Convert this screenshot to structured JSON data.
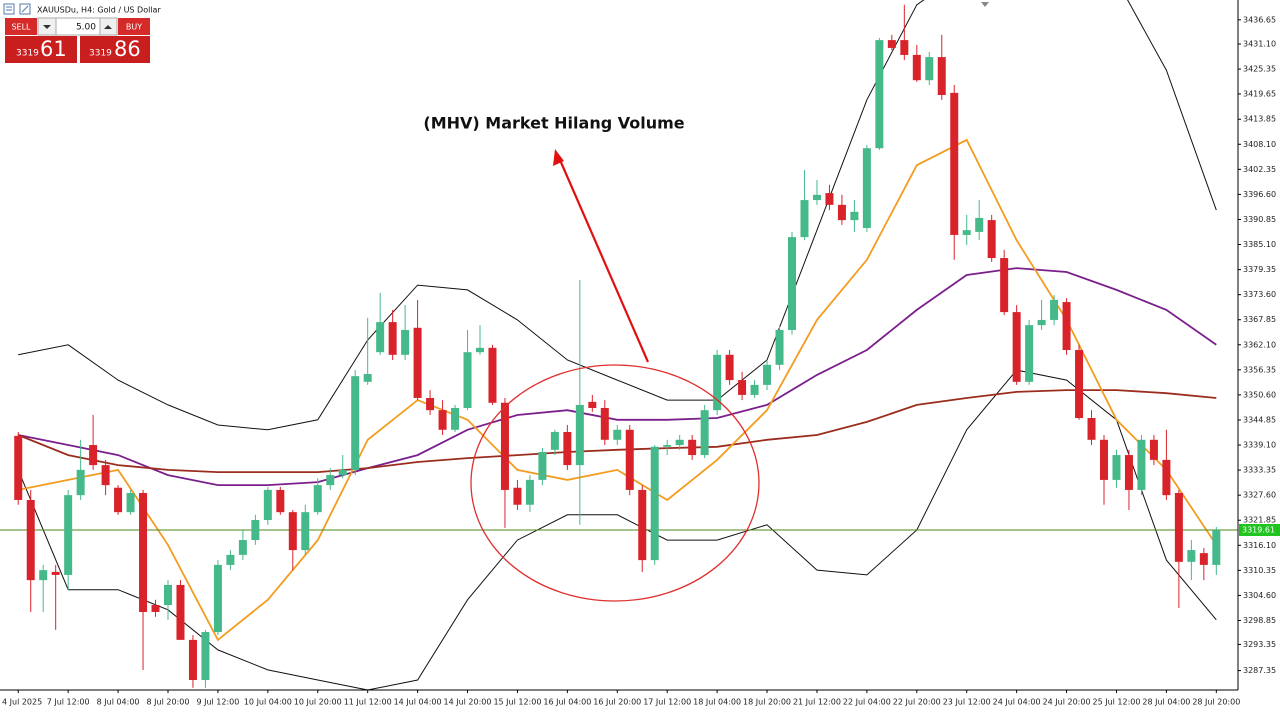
{
  "header": {
    "title": "XAUUSDu, H4:  Gold / US Dollar"
  },
  "trade_panel": {
    "sell_label": "SELL",
    "lot": "5.00",
    "buy_label": "BUY",
    "sell_price_int": "3319",
    "sell_price_frac": "61",
    "buy_price_int": "3319",
    "buy_price_frac": "86"
  },
  "chart_data": {
    "type": "candlestick",
    "annotation": "(MHV) Market Hilang Volume",
    "categories": [
      "4 Jul 2025",
      null,
      null,
      null,
      "7 Jul 12:00",
      null,
      null,
      null,
      "8 Jul 04:00",
      null,
      null,
      null,
      "8 Jul 20:00",
      null,
      null,
      null,
      "9 Jul 12:00",
      null,
      null,
      null,
      "10 Jul 04:00",
      null,
      null,
      null,
      "10 Jul 20:00",
      null,
      null,
      null,
      "11 Jul 12:00",
      null,
      null,
      null,
      "14 Jul 04:00",
      null,
      null,
      null,
      "14 Jul 20:00",
      null,
      null,
      null,
      "15 Jul 12:00",
      null,
      null,
      null,
      "16 Jul 04:00",
      null,
      null,
      null,
      "16 Jul 20:00",
      null,
      null,
      null,
      "17 Jul 12:00",
      null,
      null,
      null,
      "18 Jul 04:00",
      null,
      null,
      null,
      "18 Jul 20:00",
      null,
      null,
      null,
      "21 Jul 12:00",
      null,
      null,
      null,
      "22 Jul 04:00",
      null,
      null,
      null,
      "22 Jul 20:00",
      null,
      null,
      null,
      "23 Jul 12:00",
      null,
      null,
      null,
      "24 Jul 04:00",
      null,
      null,
      null,
      "24 Jul 20:00",
      null,
      null,
      null,
      "25 Jul 12:00",
      null,
      null,
      null,
      "28 Jul 04:00",
      null,
      null,
      null,
      "28 Jul 20:00"
    ],
    "open": [
      3341.2,
      3326.5,
      3308.1,
      3310.0,
      3309.3,
      3327.6,
      3339.1,
      3334.5,
      3329.3,
      3323.7,
      3328.1,
      3302.4,
      3302.4,
      3307.0,
      3294.4,
      3285.2,
      3296.2,
      3311.6,
      3313.9,
      3317.3,
      3321.9,
      3328.8,
      3323.7,
      3315.0,
      3323.7,
      3329.9,
      3332.2,
      3333.4,
      3353.6,
      3360.4,
      3367.3,
      3359.8,
      3366.0,
      3349.9,
      3347.1,
      3342.6,
      3347.6,
      3360.4,
      3361.4,
      3348.8,
      3329.3,
      3325.4,
      3331.1,
      3338.0,
      3342.1,
      3334.5,
      3349.0,
      3347.6,
      3340.3,
      3342.6,
      3328.8,
      3312.7,
      3338.7,
      3339.1,
      3340.3,
      3336.8,
      3347.1,
      3359.8,
      3354.0,
      3350.6,
      3352.9,
      3357.5,
      3365.5,
      3386.8,
      3395.3,
      3396.9,
      3394.2,
      3390.7,
      3388.9,
      3407.2,
      3432.0,
      3432.0,
      3428.6,
      3422.8,
      3428.1,
      3419.9,
      3387.3,
      3388.0,
      3390.7,
      3382.0,
      3369.6,
      3353.6,
      3366.6,
      3367.8,
      3371.9,
      3360.9,
      3345.3,
      3340.3,
      3331.1,
      3336.8,
      3328.8,
      3340.3,
      3335.7,
      3328.1,
      3312.3,
      3314.3,
      3311.6
    ],
    "high": [
      3342.1,
      3328.8,
      3311.6,
      3311.6,
      3328.8,
      3340.3,
      3346.0,
      3335.7,
      3329.9,
      3328.8,
      3328.8,
      3303.6,
      3308.1,
      3308.1,
      3295.5,
      3296.7,
      3312.7,
      3315.0,
      3319.6,
      3323.1,
      3329.5,
      3329.5,
      3324.2,
      3325.4,
      3331.5,
      3333.8,
      3336.8,
      3356.3,
      3368.3,
      3374.0,
      3370.1,
      3371.2,
      3372.4,
      3351.7,
      3349.4,
      3348.3,
      3365.5,
      3366.6,
      3362.1,
      3349.9,
      3331.1,
      3332.2,
      3338.4,
      3342.6,
      3343.7,
      3377.0,
      3350.6,
      3349.4,
      3343.7,
      3343.7,
      3329.9,
      3339.1,
      3340.3,
      3341.4,
      3341.4,
      3348.3,
      3360.9,
      3360.9,
      3355.9,
      3354.0,
      3358.6,
      3366.6,
      3388.0,
      3402.2,
      3399.9,
      3398.8,
      3396.5,
      3395.3,
      3407.9,
      3432.5,
      3433.2,
      3440.1,
      3430.9,
      3429.3,
      3433.2,
      3421.7,
      3391.9,
      3395.3,
      3391.9,
      3383.9,
      3371.2,
      3367.8,
      3372.4,
      3373.5,
      3372.8,
      3362.1,
      3347.1,
      3341.4,
      3338.0,
      3338.0,
      3341.4,
      3341.4,
      3342.6,
      3328.8,
      3317.3,
      3315.5,
      3320.3
    ],
    "low": [
      3325.4,
      3300.8,
      3300.8,
      3296.7,
      3305.9,
      3326.5,
      3333.4,
      3327.6,
      3323.1,
      3323.1,
      3287.5,
      3299.7,
      3299.0,
      3294.4,
      3283.4,
      3283.4,
      3295.5,
      3310.4,
      3312.7,
      3316.2,
      3320.8,
      3323.1,
      3310.4,
      3313.9,
      3323.1,
      3328.8,
      3331.5,
      3332.2,
      3352.9,
      3359.8,
      3358.6,
      3358.6,
      3349.4,
      3346.0,
      3341.4,
      3342.1,
      3347.1,
      3359.8,
      3348.3,
      3320.1,
      3324.2,
      3323.7,
      3329.9,
      3336.8,
      3333.4,
      3320.8,
      3346.7,
      3339.1,
      3339.1,
      3327.6,
      3310.0,
      3311.6,
      3336.8,
      3338.0,
      3335.7,
      3336.1,
      3346.0,
      3352.9,
      3349.4,
      3349.9,
      3351.7,
      3356.3,
      3364.4,
      3386.1,
      3394.2,
      3393.0,
      3389.6,
      3388.0,
      3388.0,
      3406.8,
      3429.7,
      3427.4,
      3422.4,
      3421.7,
      3418.3,
      3381.6,
      3385.0,
      3386.1,
      3381.1,
      3368.9,
      3352.9,
      3352.9,
      3365.5,
      3366.6,
      3359.8,
      3344.9,
      3339.1,
      3325.4,
      3329.3,
      3324.2,
      3327.6,
      3334.5,
      3326.5,
      3301.7,
      3308.1,
      3308.1,
      3309.3
    ],
    "close": [
      3326.5,
      3308.1,
      3310.4,
      3309.3,
      3327.6,
      3333.4,
      3334.5,
      3329.9,
      3323.7,
      3328.1,
      3300.8,
      3300.8,
      3307.0,
      3294.4,
      3285.2,
      3296.2,
      3311.6,
      3313.9,
      3317.3,
      3321.9,
      3328.8,
      3323.7,
      3315.0,
      3323.7,
      3329.9,
      3332.2,
      3333.4,
      3354.9,
      3355.4,
      3367.3,
      3359.8,
      3365.5,
      3349.9,
      3347.1,
      3342.6,
      3347.6,
      3360.4,
      3361.4,
      3348.8,
      3328.8,
      3325.4,
      3331.1,
      3337.5,
      3342.1,
      3334.5,
      3348.3,
      3347.6,
      3340.3,
      3342.6,
      3328.8,
      3312.7,
      3338.7,
      3339.1,
      3340.3,
      3336.8,
      3347.1,
      3359.8,
      3354.0,
      3350.6,
      3352.9,
      3357.5,
      3365.5,
      3386.8,
      3395.3,
      3396.5,
      3394.2,
      3390.7,
      3392.6,
      3407.2,
      3432.0,
      3430.2,
      3428.6,
      3422.8,
      3428.1,
      3419.4,
      3387.3,
      3388.4,
      3391.2,
      3382.0,
      3369.6,
      3353.6,
      3366.6,
      3367.8,
      3372.4,
      3360.9,
      3345.3,
      3340.3,
      3331.1,
      3336.8,
      3328.8,
      3340.3,
      3335.7,
      3327.6,
      3312.3,
      3315.0,
      3311.6,
      3319.6
    ],
    "up_color": "#45b98a",
    "down_color": "#d9232b",
    "indicators": [
      {
        "color": "#111111",
        "x": [
          0,
          4,
          8,
          12,
          16,
          20,
          24,
          28,
          32,
          36,
          40,
          44,
          48,
          52,
          56,
          60,
          64,
          68,
          72,
          76,
          80,
          84,
          88,
          92,
          96
        ],
        "values": [
          3359.8,
          3362.1,
          3354.0,
          3348.3,
          3343.7,
          3342.6,
          3344.9,
          3363.2,
          3375.8,
          3374.7,
          3367.8,
          3358.6,
          3354.0,
          3349.4,
          3349.4,
          3358.6,
          3388.4,
          3418.3,
          3440.1,
          3448.1,
          3455.0,
          3455.0,
          3445.8,
          3425.1,
          3393.0
        ]
      },
      {
        "color": "#111111",
        "x": [
          0,
          4,
          8,
          12,
          16,
          20,
          24,
          28,
          32,
          36,
          40,
          44,
          48,
          52,
          56,
          60,
          64,
          68,
          72,
          76,
          80,
          84,
          88,
          92,
          96
        ],
        "values": [
          3333.4,
          3305.9,
          3305.9,
          3301.3,
          3292.1,
          3287.5,
          3285.2,
          3282.9,
          3285.2,
          3303.6,
          3317.3,
          3323.1,
          3323.1,
          3317.3,
          3317.3,
          3320.8,
          3310.4,
          3309.3,
          3319.6,
          3342.6,
          3356.3,
          3354.0,
          3344.9,
          3312.7,
          3299.0
        ]
      },
      {
        "color": "#7b1f8c",
        "x": [
          0,
          4,
          8,
          12,
          16,
          20,
          24,
          28,
          32,
          36,
          40,
          44,
          48,
          52,
          56,
          60,
          64,
          68,
          72,
          76,
          80,
          84,
          88,
          92,
          96
        ],
        "values": [
          3341.4,
          3339.1,
          3336.8,
          3332.2,
          3329.9,
          3329.9,
          3330.6,
          3333.8,
          3336.8,
          3342.6,
          3346.0,
          3347.1,
          3344.9,
          3344.9,
          3345.3,
          3348.3,
          3355.2,
          3360.9,
          3370.1,
          3378.1,
          3379.7,
          3378.8,
          3374.7,
          3370.1,
          3362.1
        ]
      },
      {
        "color": "#9b2d1f",
        "x": [
          0,
          4,
          8,
          12,
          16,
          20,
          24,
          28,
          32,
          36,
          40,
          44,
          48,
          52,
          56,
          60,
          64,
          68,
          72,
          76,
          80,
          84,
          88,
          92,
          96
        ],
        "values": [
          3341.4,
          3336.8,
          3334.5,
          3333.4,
          3332.9,
          3332.9,
          3332.9,
          3333.8,
          3335.2,
          3336.1,
          3336.8,
          3337.5,
          3338.0,
          3338.4,
          3338.7,
          3340.3,
          3341.4,
          3344.4,
          3348.3,
          3349.9,
          3351.3,
          3351.7,
          3351.7,
          3351.0,
          3349.9
        ]
      },
      {
        "color": "#f39c1f",
        "x": [
          0,
          4,
          8,
          12,
          16,
          20,
          24,
          28,
          32,
          36,
          40,
          44,
          48,
          52,
          56,
          60,
          64,
          68,
          72,
          76,
          80,
          84,
          88,
          92,
          96
        ],
        "values": [
          3328.8,
          3331.1,
          3333.4,
          3316.2,
          3294.4,
          3303.6,
          3317.3,
          3340.3,
          3349.4,
          3344.9,
          3333.4,
          3331.1,
          3333.4,
          3326.5,
          3335.7,
          3347.1,
          3367.8,
          3381.6,
          3403.3,
          3409.1,
          3386.1,
          3367.8,
          3344.9,
          3333.4,
          3316.2
        ]
      }
    ],
    "current_price": {
      "value": 3319.61,
      "label": "3319.61"
    },
    "ylim": [
      3282.9,
      3441.2
    ],
    "yticks": [
      3436.65,
      {
        "value": 3431.1,
        "label": "3431.10"
      },
      3425.35,
      3419.65,
      3413.85,
      {
        "value": 3408.1,
        "label": "3408.10"
      },
      3402.35,
      {
        "value": 3396.6,
        "label": "3396.60"
      },
      3390.85,
      {
        "value": 3385.1,
        "label": "3385.10"
      },
      3379.35,
      {
        "value": 3373.6,
        "label": "3373.60"
      },
      3367.85,
      {
        "value": 3362.1,
        "label": "3362.10"
      },
      3356.35,
      {
        "value": 3350.6,
        "label": "3350.60"
      },
      3344.85,
      {
        "value": 3339.1,
        "label": "3339.10"
      },
      3333.35,
      {
        "value": 3327.6,
        "label": "3327.60"
      },
      3321.85,
      {
        "value": 3316.1,
        "label": "3316.10"
      },
      3310.35,
      {
        "value": 3304.6,
        "label": "3304.60"
      },
      3298.85,
      3293.35,
      3287.35
    ]
  }
}
